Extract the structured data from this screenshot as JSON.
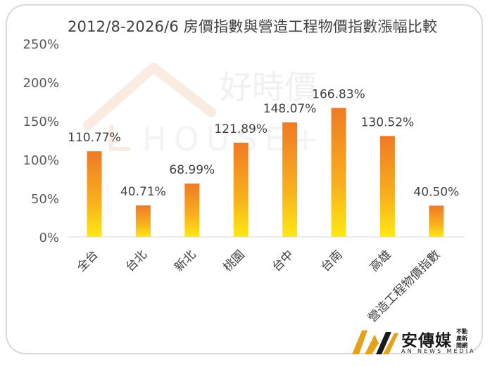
{
  "chart_data": {
    "type": "bar",
    "title": "2012/8-2026/6 房價指數與營造工程物價指數漲幅比較",
    "categories": [
      "全台",
      "台北",
      "新北",
      "桃園",
      "台中",
      "台南",
      "高雄",
      "營造工程物價指數"
    ],
    "values": [
      110.77,
      40.71,
      68.99,
      121.89,
      148.07,
      166.83,
      130.52,
      40.5
    ],
    "data_labels": [
      "110.77%",
      "40.71%",
      "68.99%",
      "121.89%",
      "148.07%",
      "166.83%",
      "130.52%",
      "40.50%"
    ],
    "ylim": [
      0,
      250
    ],
    "yticks": [
      0,
      50,
      100,
      150,
      200,
      250
    ],
    "ytick_labels": [
      "0%",
      "50%",
      "100%",
      "150%",
      "200%",
      "250%"
    ],
    "grid": false,
    "bar_gradient": [
      "#f07a26",
      "#ffe812"
    ]
  },
  "watermark": {
    "text": "好時價",
    "latin": "HOUSE+"
  },
  "brand": {
    "name": "安傳媒",
    "tagline": "不動產新聞網",
    "english": "AN NEWS MEDIA"
  }
}
